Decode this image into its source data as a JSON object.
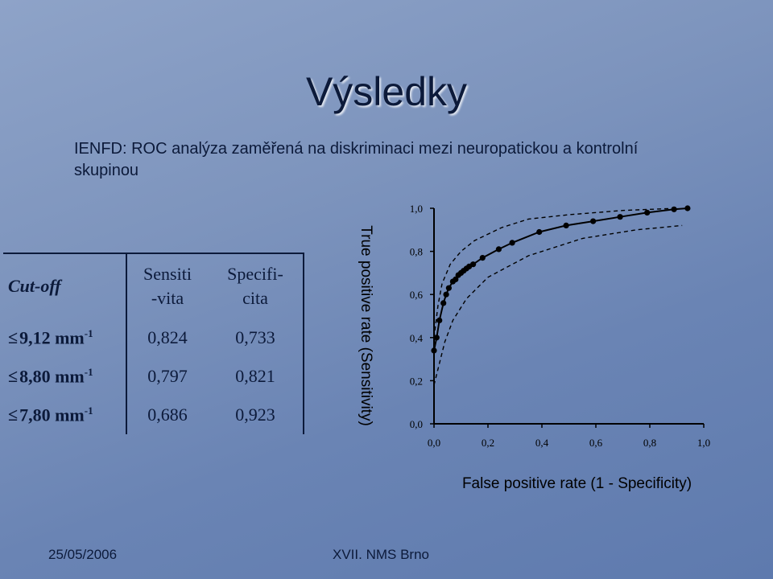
{
  "slide": {
    "title": "Výsledky",
    "subtitle": "IENFD: ROC analýza zaměřená na diskriminaci mezi neuropatickou a kontrolní skupinou"
  },
  "table": {
    "headers": {
      "cutoff": "Cut-off",
      "sensitivity_line1": "Sensiti",
      "sensitivity_line2": "-vita",
      "specificity_line1": "Specifi-",
      "specificity_line2": "cita"
    },
    "rows": [
      {
        "symbol": "≤",
        "value": "9,12 mm",
        "exp": "-1",
        "sensitivity": "0,824",
        "specificity": "0,733"
      },
      {
        "symbol": "≤",
        "value": "8,80 mm",
        "exp": "-1",
        "sensitivity": "0,797",
        "specificity": "0,821"
      },
      {
        "symbol": "≤",
        "value": "7,80 mm",
        "exp": "-1",
        "sensitivity": "0,686",
        "specificity": "0,923"
      }
    ]
  },
  "chart_data": {
    "type": "line",
    "xlabel": "False positive rate (1 - Specificity)",
    "ylabel": "True positive rate (Sensitivity)",
    "xlim": [
      0,
      1
    ],
    "ylim": [
      0,
      1
    ],
    "x_ticks": [
      "0,0",
      "0,2",
      "0,4",
      "0,6",
      "0,8",
      "1,0"
    ],
    "y_ticks": [
      "0,0",
      "0,2",
      "0,4",
      "0,6",
      "0,8",
      "1,0"
    ],
    "grid": false,
    "series": [
      {
        "style": "solid-with-markers",
        "points": [
          [
            0.0,
            0.34
          ],
          [
            0.01,
            0.4
          ],
          [
            0.02,
            0.48
          ],
          [
            0.035,
            0.56
          ],
          [
            0.045,
            0.6
          ],
          [
            0.055,
            0.63
          ],
          [
            0.07,
            0.66
          ],
          [
            0.08,
            0.67
          ],
          [
            0.09,
            0.69
          ],
          [
            0.1,
            0.7
          ],
          [
            0.11,
            0.71
          ],
          [
            0.12,
            0.72
          ],
          [
            0.13,
            0.73
          ],
          [
            0.145,
            0.74
          ],
          [
            0.18,
            0.77
          ],
          [
            0.24,
            0.81
          ],
          [
            0.29,
            0.84
          ],
          [
            0.39,
            0.89
          ],
          [
            0.49,
            0.92
          ],
          [
            0.59,
            0.94
          ],
          [
            0.69,
            0.96
          ],
          [
            0.79,
            0.98
          ],
          [
            0.89,
            0.995
          ],
          [
            0.94,
            1.0
          ]
        ],
        "color": "#000000"
      },
      {
        "style": "dashed",
        "points": [
          [
            0.0,
            0.4
          ],
          [
            0.015,
            0.55
          ],
          [
            0.03,
            0.65
          ],
          [
            0.06,
            0.74
          ],
          [
            0.1,
            0.8
          ],
          [
            0.15,
            0.85
          ],
          [
            0.25,
            0.91
          ],
          [
            0.35,
            0.95
          ],
          [
            0.5,
            0.97
          ],
          [
            0.7,
            0.99
          ],
          [
            0.9,
            1.0
          ]
        ],
        "color": "#000000"
      },
      {
        "style": "dashed",
        "points": [
          [
            0.0,
            0.18
          ],
          [
            0.02,
            0.28
          ],
          [
            0.04,
            0.38
          ],
          [
            0.07,
            0.48
          ],
          [
            0.12,
            0.58
          ],
          [
            0.2,
            0.68
          ],
          [
            0.35,
            0.78
          ],
          [
            0.55,
            0.86
          ],
          [
            0.75,
            0.9
          ],
          [
            0.92,
            0.92
          ]
        ],
        "color": "#000000"
      }
    ]
  },
  "footer": {
    "date": "25/05/2006",
    "conference": "XVII. NMS Brno"
  }
}
